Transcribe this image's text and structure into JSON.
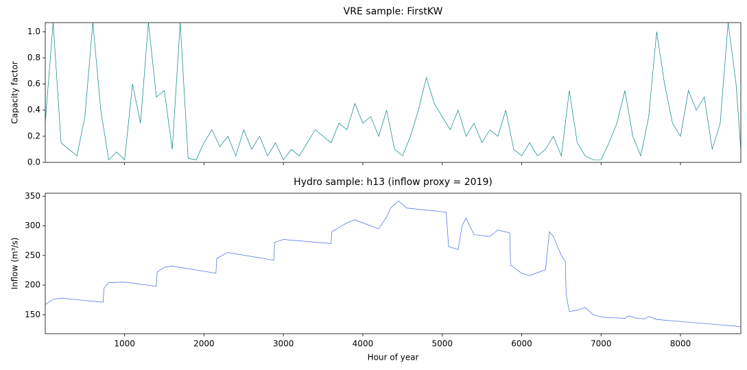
{
  "chart_data": [
    {
      "type": "line",
      "title": "VRE sample: FirstKW",
      "y_label": "Capacity factor",
      "x": [
        0,
        100,
        200,
        300,
        400,
        500,
        600,
        700,
        800,
        900,
        1000,
        1100,
        1200,
        1300,
        1400,
        1500,
        1600,
        1700,
        1800,
        1900,
        2000,
        2100,
        2200,
        2300,
        2400,
        2500,
        2600,
        2700,
        2800,
        2900,
        3000,
        3100,
        3200,
        3300,
        3400,
        3500,
        3600,
        3700,
        3800,
        3900,
        4000,
        4100,
        4200,
        4300,
        4400,
        4500,
        4600,
        4700,
        4800,
        4900,
        5000,
        5100,
        5200,
        5300,
        5400,
        5500,
        5600,
        5700,
        5800,
        5900,
        6000,
        6100,
        6200,
        6300,
        6400,
        6500,
        6600,
        6700,
        6800,
        6900,
        7000,
        7100,
        7200,
        7300,
        7400,
        7500,
        7600,
        7700,
        7800,
        7900,
        8000,
        8100,
        8200,
        8300,
        8400,
        8500,
        8600,
        8700,
        8760
      ],
      "series": [
        {
          "name": "FirstKW",
          "color": "#008080",
          "values": [
            0.3,
            1.07,
            0.15,
            0.1,
            0.05,
            0.35,
            1.07,
            0.4,
            0.02,
            0.08,
            0.02,
            0.6,
            0.3,
            1.07,
            0.5,
            0.55,
            0.1,
            1.07,
            0.03,
            0.02,
            0.15,
            0.25,
            0.12,
            0.2,
            0.05,
            0.25,
            0.1,
            0.2,
            0.05,
            0.15,
            0.02,
            0.1,
            0.05,
            0.15,
            0.25,
            0.2,
            0.15,
            0.3,
            0.25,
            0.45,
            0.3,
            0.35,
            0.2,
            0.4,
            0.1,
            0.05,
            0.2,
            0.4,
            0.65,
            0.45,
            0.35,
            0.25,
            0.4,
            0.2,
            0.3,
            0.15,
            0.25,
            0.2,
            0.4,
            0.1,
            0.05,
            0.15,
            0.05,
            0.1,
            0.2,
            0.05,
            0.55,
            0.15,
            0.05,
            0.02,
            0.02,
            0.15,
            0.3,
            0.55,
            0.2,
            0.05,
            0.35,
            1.0,
            0.6,
            0.3,
            0.2,
            0.55,
            0.4,
            0.5,
            0.1,
            0.3,
            1.07,
            0.6,
            0.1
          ]
        }
      ],
      "xlim": [
        1,
        8760
      ],
      "ylim": [
        0,
        1.07
      ],
      "yticks": [
        {
          "value": 0,
          "label": "0.0"
        },
        0.2,
        0.4,
        0.6,
        0.8,
        {
          "value": 1,
          "label": "1.0"
        }
      ]
    },
    {
      "type": "line",
      "title": "Hydro sample: h13 (inflow proxy = 2019)",
      "y_label": "Inflow (m³/s)",
      "x_label": "Hour of year",
      "x": [
        0,
        100,
        200,
        730,
        740,
        800,
        1000,
        1400,
        1410,
        1500,
        1600,
        2150,
        2160,
        2300,
        2880,
        2890,
        3000,
        3600,
        3610,
        3800,
        3900,
        4000,
        4200,
        4300,
        4350,
        4450,
        4550,
        5050,
        5080,
        5200,
        5250,
        5300,
        5400,
        5600,
        5700,
        5850,
        5860,
        6000,
        6100,
        6300,
        6350,
        6400,
        6500,
        6550,
        6560,
        6600,
        6700,
        6800,
        6900,
        7000,
        7300,
        7350,
        7450,
        7550,
        7600,
        7700,
        8760
      ],
      "series": [
        {
          "name": "h13",
          "color": "#4169e1",
          "values": [
            167,
            176,
            178,
            171,
            195,
            204,
            205,
            198,
            222,
            230,
            232,
            220,
            245,
            255,
            242,
            272,
            277,
            270,
            290,
            305,
            310,
            305,
            295,
            315,
            330,
            342,
            330,
            323,
            265,
            260,
            300,
            313,
            285,
            282,
            293,
            288,
            234,
            220,
            216,
            226,
            290,
            282,
            250,
            240,
            185,
            155,
            158,
            162,
            150,
            146,
            144,
            148,
            144,
            143,
            147,
            142,
            130
          ]
        }
      ],
      "xlim": [
        1,
        8760
      ],
      "ylim": [
        118,
        355
      ],
      "xticks": [
        1000,
        2000,
        3000,
        4000,
        5000,
        6000,
        7000,
        8000
      ],
      "yticks": [
        150,
        200,
        250,
        300,
        350
      ]
    }
  ]
}
